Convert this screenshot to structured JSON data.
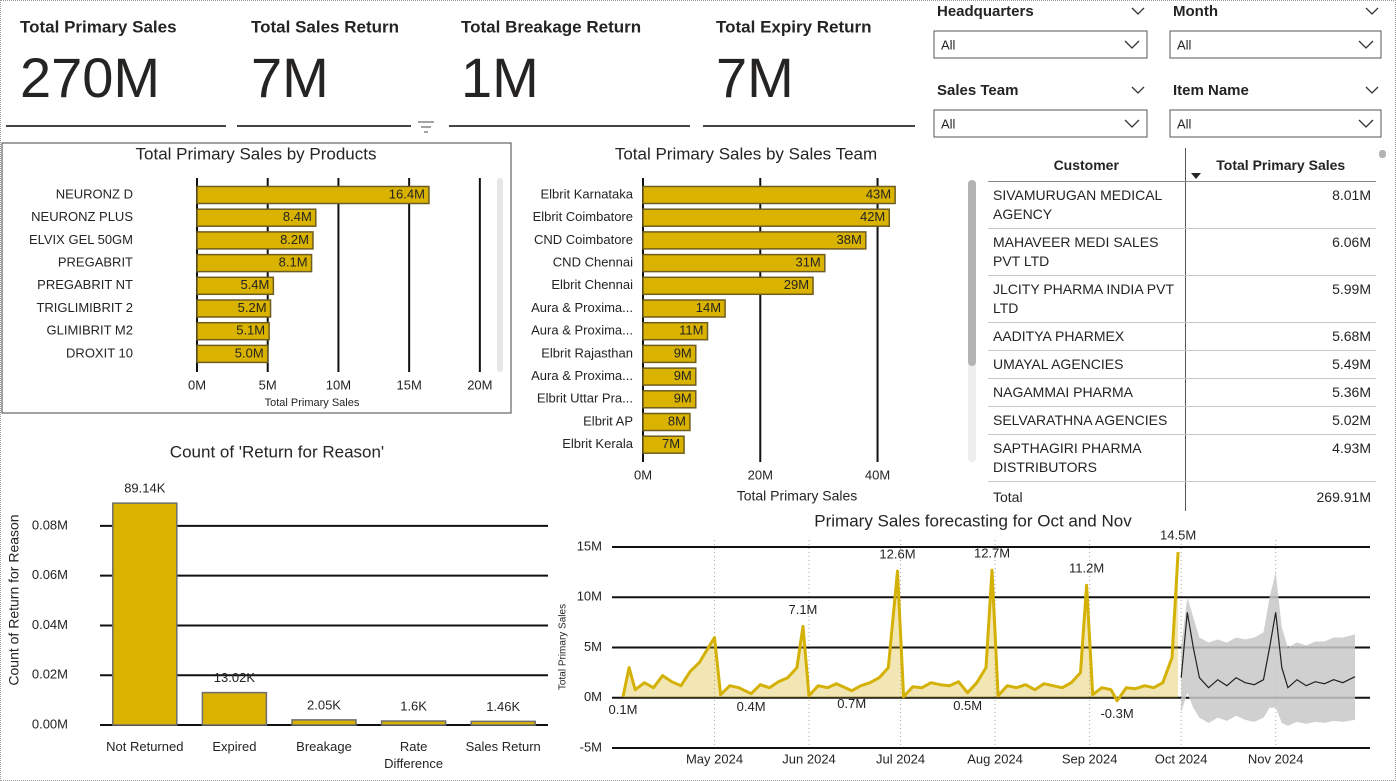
{
  "cards": [
    {
      "title": "Total Primary Sales",
      "value": "270M"
    },
    {
      "title": "Total Sales Return",
      "value": "7M"
    },
    {
      "title": "Total Breakage Return",
      "value": "1M"
    },
    {
      "title": "Total Expiry Return",
      "value": "7M"
    }
  ],
  "slicers": [
    {
      "label": "Headquarters",
      "value": "All"
    },
    {
      "label": "Month",
      "value": "All"
    },
    {
      "label": "Sales Team",
      "value": "All"
    },
    {
      "label": "Item Name",
      "value": "All"
    }
  ],
  "table": {
    "columns": [
      "Customer",
      "Total Primary Sales"
    ],
    "rows": [
      [
        "SIVAMURUGAN MEDICAL AGENCY",
        "8.01M"
      ],
      [
        "MAHAVEER MEDI SALES PVT LTD",
        "6.06M"
      ],
      [
        "JLCITY PHARMA INDIA PVT LTD",
        "5.99M"
      ],
      [
        "AADITYA PHARMEX",
        "5.68M"
      ],
      [
        "UMAYAL AGENCIES",
        "5.49M"
      ],
      [
        "NAGAMMAI PHARMA",
        "5.36M"
      ],
      [
        "SELVARATHNA AGENCIES",
        "5.02M"
      ],
      [
        "SAPTHAGIRI PHARMA DISTRIBUTORS",
        "4.93M"
      ]
    ],
    "total": [
      "Total",
      "269.91M"
    ]
  },
  "chart_data": [
    {
      "type": "hbar",
      "title": "Total Primary Sales by Products",
      "x_label": "Total Primary Sales",
      "categories": [
        "NEURONZ D",
        "NEURONZ PLUS",
        "ELVIX GEL 50GM",
        "PREGABRIT",
        "PREGABRIT NT",
        "TRIGLIMIBRIT 2",
        "GLIMIBRIT M2",
        "DROXIT 10"
      ],
      "values": [
        16.4,
        8.4,
        8.2,
        8.1,
        5.4,
        5.2,
        5.1,
        5.0
      ],
      "value_labels": [
        "16.4M",
        "8.4M",
        "8.2M",
        "8.1M",
        "5.4M",
        "5.2M",
        "5.1M",
        "5.0M"
      ],
      "color": "#D9B300",
      "xlim": [
        0,
        21
      ],
      "xticks": [
        {
          "value": 0,
          "label": "0M"
        },
        {
          "value": 5,
          "label": "5M"
        },
        {
          "value": 10,
          "label": "10M"
        },
        {
          "value": 15,
          "label": "15M"
        },
        {
          "value": 20,
          "label": "20M"
        }
      ],
      "grid": true
    },
    {
      "type": "hbar",
      "title": "Total Primary Sales by Sales Team",
      "x_label": "Total Primary Sales",
      "categories": [
        "Elbrit Karnataka",
        "Elbrit Coimbatore",
        "CND Coimbatore",
        "CND Chennai",
        "Elbrit Chennai",
        "Aura & Proxima...",
        "Aura & Proxima...",
        "Elbrit Rajasthan",
        "Aura & Proxima...",
        "Elbrit Uttar Pra...",
        "Elbrit AP",
        "Elbrit Kerala"
      ],
      "values": [
        43,
        42,
        38,
        31,
        29,
        14,
        11,
        9,
        9,
        9,
        8,
        7
      ],
      "value_labels": [
        "43M",
        "42M",
        "38M",
        "31M",
        "29M",
        "14M",
        "11M",
        "9M",
        "9M",
        "9M",
        "8M",
        "7M"
      ],
      "color": "#D9B300",
      "xlim": [
        0,
        44
      ],
      "xticks": [
        {
          "value": 0,
          "label": "0M"
        },
        {
          "value": 20,
          "label": "20M"
        },
        {
          "value": 40,
          "label": "40M"
        }
      ],
      "grid": true
    },
    {
      "type": "column",
      "title": "Count of 'Return for Reason'",
      "y_label": "Count of Return for Reason",
      "categories": [
        "Not Returned",
        "Expired",
        "Breakage",
        "Rate Difference",
        "Sales Return"
      ],
      "values": [
        0.08914,
        0.01302,
        0.00205,
        0.0016,
        0.00146
      ],
      "value_labels": [
        "89.14K",
        "13.02K",
        "2.05K",
        "1.6K",
        "1.46K"
      ],
      "color": "#D9B300",
      "ylim": [
        0,
        0.09
      ],
      "yticks": [
        {
          "value": 0,
          "label": "0.00M"
        },
        {
          "value": 0.02,
          "label": "0.02M"
        },
        {
          "value": 0.04,
          "label": "0.04M"
        },
        {
          "value": 0.06,
          "label": "0.06M"
        },
        {
          "value": 0.08,
          "label": "0.08M"
        }
      ],
      "grid": true
    },
    {
      "type": "line",
      "title": "Primary Sales forecasting for Oct and Nov",
      "y_label": "Total Primary Sales",
      "x": [
        0,
        2,
        4,
        7,
        10,
        13,
        16,
        19,
        22,
        25,
        28,
        30,
        32,
        35,
        38,
        42,
        45,
        48,
        51,
        54,
        57,
        59,
        61,
        64,
        67,
        70,
        75,
        78,
        81,
        84,
        87,
        90,
        92,
        95,
        98,
        101,
        104,
        107,
        110,
        113,
        116,
        119,
        121,
        123,
        126,
        129,
        132,
        135,
        138,
        141,
        144,
        147,
        150,
        152,
        154,
        157,
        160,
        162,
        165,
        168,
        171,
        174,
        177,
        180,
        182
      ],
      "values": [
        0.1,
        3.0,
        0.8,
        1.5,
        1.0,
        2.2,
        1.6,
        1.2,
        2.6,
        3.5,
        5.0,
        6.0,
        0.3,
        1.2,
        1.0,
        0.4,
        1.3,
        1.0,
        1.6,
        2.0,
        3.0,
        7.1,
        0.2,
        1.2,
        1.0,
        1.4,
        0.7,
        1.2,
        1.5,
        2.0,
        3.0,
        12.6,
        0.1,
        1.1,
        1.0,
        1.5,
        1.3,
        1.2,
        1.6,
        0.5,
        1.5,
        3.0,
        12.7,
        0.2,
        1.2,
        1.0,
        1.3,
        0.8,
        1.4,
        1.2,
        1.0,
        1.5,
        2.5,
        11.2,
        0.3,
        1.0,
        0.8,
        -0.3,
        1.0,
        0.9,
        1.2,
        1.0,
        1.5,
        4.0,
        14.5
      ],
      "value_labels": [
        "0.1M",
        null,
        null,
        null,
        null,
        null,
        null,
        null,
        null,
        null,
        null,
        null,
        null,
        null,
        null,
        "0.4M",
        null,
        null,
        null,
        null,
        null,
        "7.1M",
        null,
        null,
        null,
        null,
        "0.7M",
        null,
        null,
        null,
        null,
        "12.6M",
        null,
        null,
        null,
        null,
        null,
        null,
        null,
        "0.5M",
        null,
        null,
        "12.7M",
        null,
        null,
        null,
        null,
        null,
        null,
        null,
        null,
        null,
        null,
        "11.2M",
        null,
        null,
        null,
        "-0.3M",
        null,
        null,
        null,
        null,
        null,
        null,
        "14.5M"
      ],
      "color": "#D4B106",
      "forecast": {
        "x": [
          183,
          185,
          187,
          189,
          192,
          195,
          198,
          201,
          204,
          207,
          210,
          212,
          214,
          216,
          218,
          221,
          224,
          227,
          230,
          233,
          236,
          240
        ],
        "values": [
          2.0,
          8.5,
          5.0,
          2.0,
          1.0,
          1.8,
          1.2,
          2.0,
          1.5,
          1.3,
          1.8,
          5.0,
          8.5,
          3.0,
          1.0,
          1.8,
          1.2,
          1.6,
          1.4,
          1.8,
          1.5,
          2.1
        ],
        "lower": [
          -1.5,
          0.5,
          -1.0,
          -2.0,
          -2.5,
          -2.0,
          -2.3,
          -1.8,
          -2.2,
          -2.4,
          -2.0,
          -1.0,
          -1.0,
          -2.5,
          -2.8,
          -2.4,
          -2.6,
          -2.4,
          -2.5,
          -2.3,
          -2.4,
          -2.2
        ],
        "upper": [
          5.0,
          10.0,
          8.0,
          6.0,
          5.5,
          5.8,
          5.5,
          6.0,
          5.8,
          6.0,
          6.5,
          10.0,
          12.5,
          7.0,
          5.0,
          5.5,
          5.2,
          5.6,
          5.6,
          6.0,
          6.0,
          6.3
        ],
        "color": "#222222",
        "band_color": "#C8C8C8"
      },
      "xlim": [
        0,
        240
      ],
      "xticks": [
        {
          "value": 30,
          "label": "May 2024"
        },
        {
          "value": 61,
          "label": "Jun 2024"
        },
        {
          "value": 91,
          "label": "Jul 2024"
        },
        {
          "value": 122,
          "label": "Aug 2024"
        },
        {
          "value": 153,
          "label": "Sep 2024"
        },
        {
          "value": 183,
          "label": "Oct 2024"
        },
        {
          "value": 214,
          "label": "Nov 2024"
        }
      ],
      "ylim": [
        -5.2,
        15.7
      ],
      "yticks": [
        {
          "value": -5,
          "label": "-5M"
        },
        {
          "value": 0,
          "label": "0M"
        },
        {
          "value": 5,
          "label": "5M"
        },
        {
          "value": 10,
          "label": "10M"
        },
        {
          "value": 15,
          "label": "15M"
        }
      ],
      "grid": true
    }
  ]
}
